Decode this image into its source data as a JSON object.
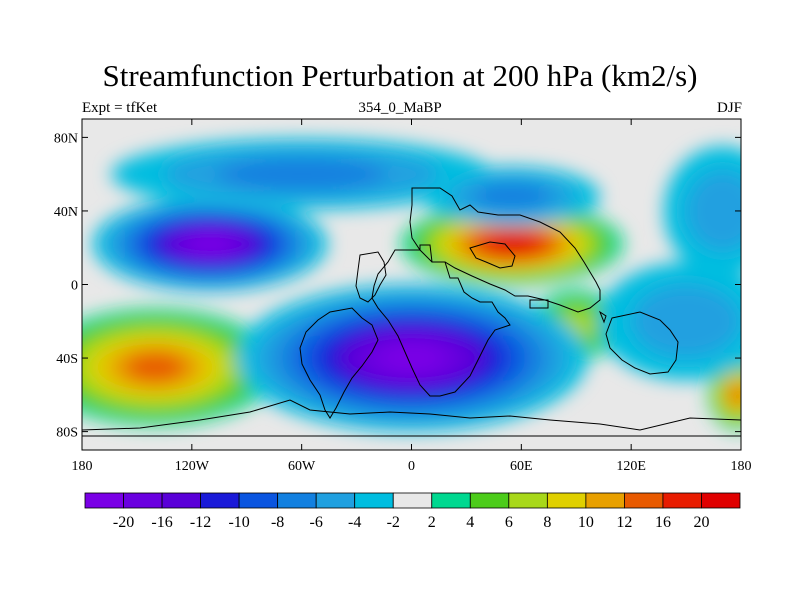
{
  "title": "Streamfunction Perturbation at 200 hPa (km2/s)",
  "subtitle_left": "Expt = tfKet",
  "subtitle_center": "354_0_MaBP",
  "subtitle_right": "DJF",
  "colors": {
    "background_field": "#e8e8e8",
    "coastline": "#000000",
    "levels": [
      "#7a00e6",
      "#6a00e0",
      "#5a00d8",
      "#1a1ad8",
      "#0a55e0",
      "#1280e0",
      "#20a0e0",
      "#00bde0",
      "#e8e8e8",
      "#00d890",
      "#4ccc1a",
      "#a8d81a",
      "#e0d000",
      "#e8a000",
      "#e85a00",
      "#e81c00",
      "#e00000"
    ]
  },
  "map": {
    "projection": "cylindrical-equidistant",
    "lon_range": [
      -180,
      180
    ],
    "lat_range": [
      -90,
      90
    ],
    "x_ticks": [
      {
        "lon": -180,
        "label": "180"
      },
      {
        "lon": -120,
        "label": "120W"
      },
      {
        "lon": -60,
        "label": "60W"
      },
      {
        "lon": 0,
        "label": "0"
      },
      {
        "lon": 60,
        "label": "60E"
      },
      {
        "lon": 120,
        "label": "120E"
      },
      {
        "lon": 180,
        "label": "180"
      }
    ],
    "y_ticks": [
      {
        "lat": 80,
        "label": "80N"
      },
      {
        "lat": 40,
        "label": "40N"
      },
      {
        "lat": 0,
        "label": "0"
      },
      {
        "lat": -40,
        "label": "40S"
      },
      {
        "lat": -80,
        "label": "80S"
      }
    ],
    "features": [
      {
        "name": "field-high-eurasia-africa",
        "lon": 55,
        "lat": 22,
        "rx": 38,
        "ry": 14,
        "level": 16
      },
      {
        "name": "field-high-indian-ocean",
        "lon": 90,
        "lat": -22,
        "rx": 15,
        "ry": 12,
        "level": 11
      },
      {
        "name": "field-high-south-pacific",
        "lon": -140,
        "lat": -45,
        "rx": 42,
        "ry": 20,
        "level": 14
      },
      {
        "name": "field-high-far-east-south",
        "lon": 178,
        "lat": -60,
        "rx": 10,
        "ry": 12,
        "level": 14
      },
      {
        "name": "field-low-north-pacific",
        "lon": -110,
        "lat": 22,
        "rx": 40,
        "ry": 16,
        "level": 0
      },
      {
        "name": "field-low-atlantic-south",
        "lon": 0,
        "lat": -40,
        "rx": 60,
        "ry": 25,
        "level": 0
      },
      {
        "name": "field-low-north-ocean",
        "lon": -60,
        "lat": 60,
        "rx": 65,
        "ry": 12,
        "level": 5
      },
      {
        "name": "field-low-asia-north",
        "lon": 55,
        "lat": 48,
        "rx": 30,
        "ry": 10,
        "level": 5
      },
      {
        "name": "field-low-south-indian",
        "lon": 150,
        "lat": -20,
        "rx": 30,
        "ry": 20,
        "level": 6
      },
      {
        "name": "field-low-north-east-pacific",
        "lon": 170,
        "lat": 40,
        "rx": 20,
        "ry": 22,
        "level": 6
      }
    ]
  },
  "colorbar": {
    "labels": [
      "-20",
      "-16",
      "-12",
      "-10",
      "-8",
      "-6",
      "-4",
      "-2",
      "2",
      "4",
      "6",
      "8",
      "10",
      "12",
      "16",
      "20"
    ]
  }
}
